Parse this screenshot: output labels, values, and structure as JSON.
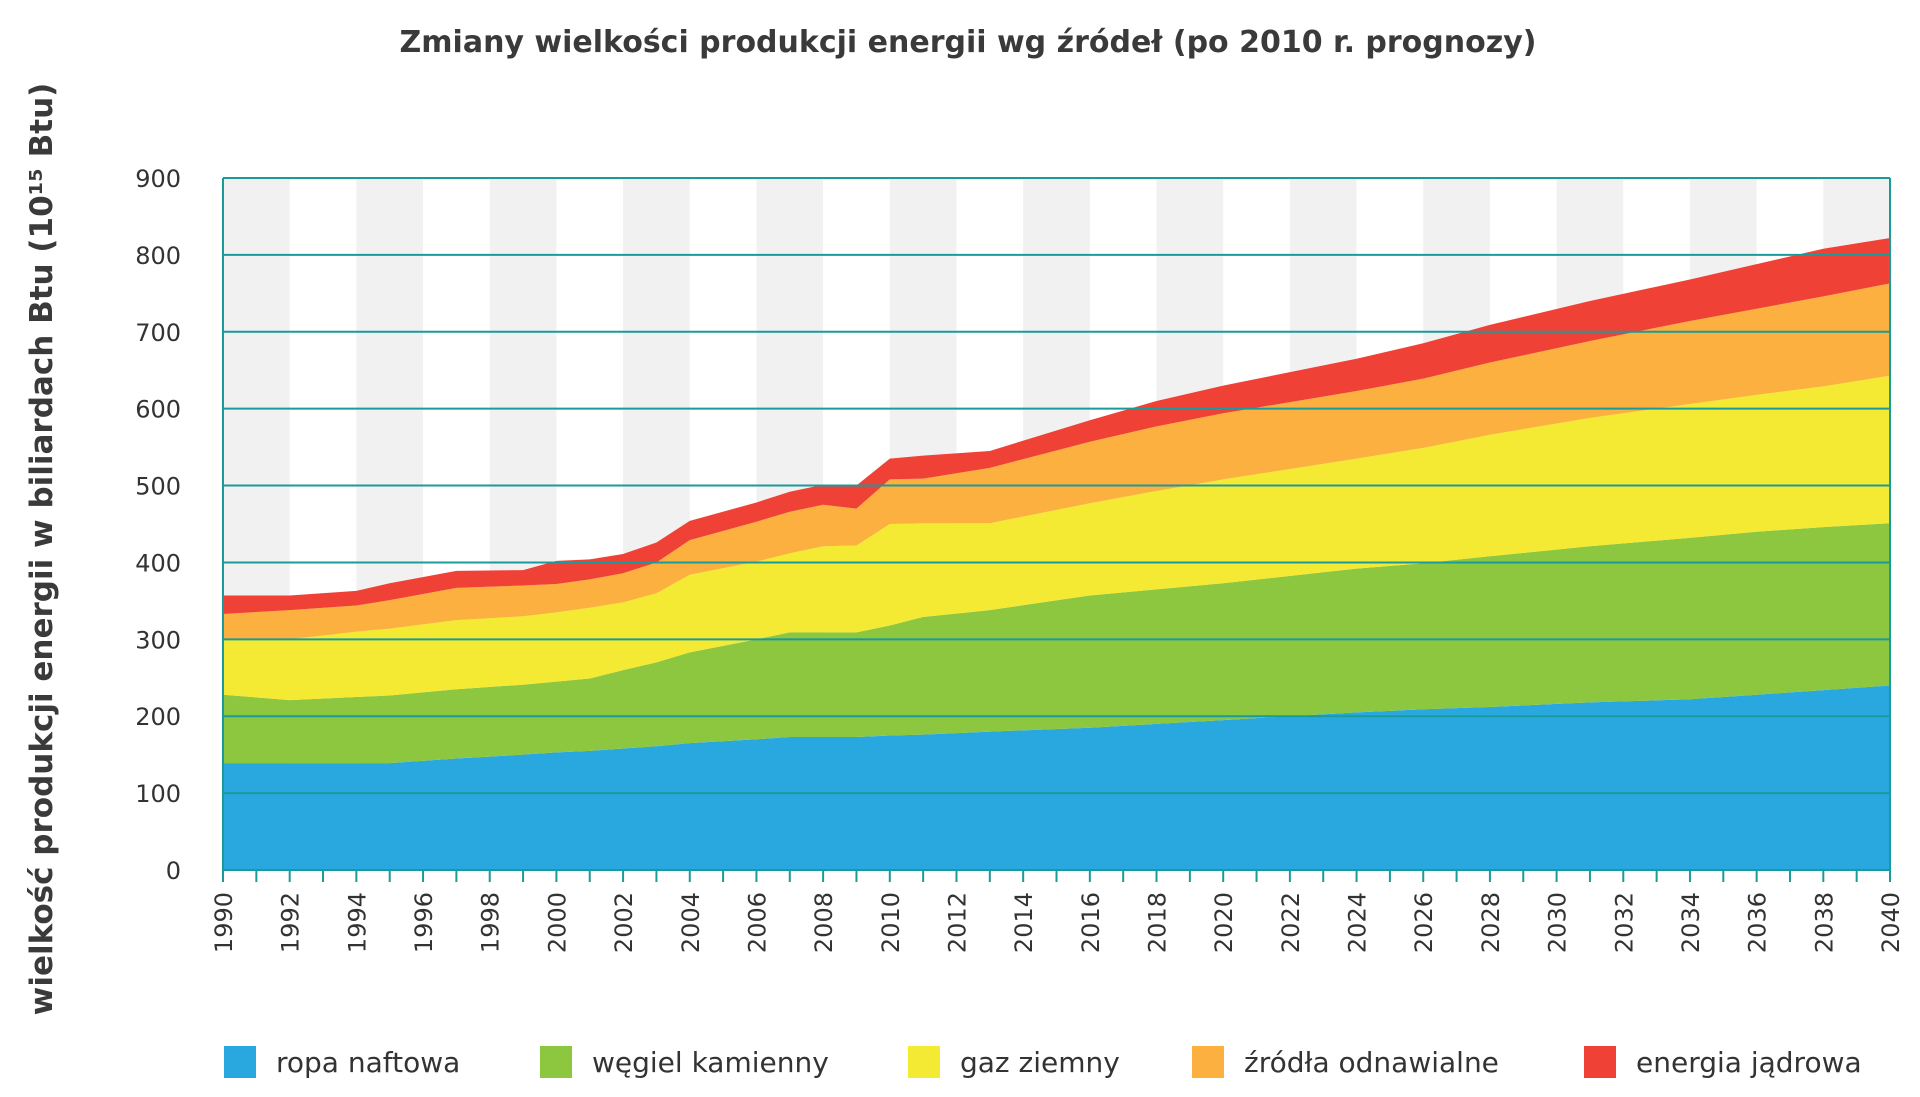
{
  "chart_data": {
    "type": "area",
    "stacked": true,
    "title": "Zmiany wielkości produkcji energii wg źródeł (po 2010 r. prognozy)",
    "xlabel": "",
    "ylabel": "wielkość produkcji energii w biliardach Btu (10¹⁵ Btu)",
    "xlim": [
      1990,
      2040
    ],
    "ylim": [
      0,
      900
    ],
    "yticks": [
      0,
      100,
      200,
      300,
      400,
      500,
      600,
      700,
      800,
      900
    ],
    "yticks_labels": [
      "0",
      "100",
      "200",
      "300",
      "400",
      "500",
      "600",
      "700",
      "800",
      "900"
    ],
    "xticks": [
      1990,
      1992,
      1994,
      1996,
      1998,
      2000,
      2002,
      2004,
      2006,
      2008,
      2010,
      2012,
      2014,
      2016,
      2018,
      2020,
      2022,
      2024,
      2026,
      2028,
      2030,
      2032,
      2034,
      2036,
      2038,
      2040
    ],
    "xticks_labels": [
      "1990",
      "1992",
      "1994",
      "1996",
      "1998",
      "2000",
      "2002",
      "2004",
      "2006",
      "2008",
      "2010",
      "2012",
      "2014",
      "2016",
      "2018",
      "2020",
      "2022",
      "2024",
      "2026",
      "2028",
      "2030",
      "2032",
      "2034",
      "2036",
      "2038",
      "2040"
    ],
    "grid": "horizontal",
    "background_bands": true,
    "legend_position": "bottom",
    "x": [
      1990,
      1992,
      1994,
      1995,
      1997,
      1999,
      2000,
      2001,
      2002,
      2003,
      2004,
      2006,
      2007,
      2008,
      2009,
      2010,
      2011,
      2013,
      2016,
      2018,
      2020,
      2024,
      2026,
      2028,
      2031,
      2034,
      2036,
      2038,
      2040
    ],
    "series": [
      {
        "name": "ropa naftowa",
        "color": "#29a8e0",
        "values": [
          139,
          139,
          139,
          139,
          145,
          150,
          153,
          155,
          158,
          161,
          165,
          170,
          173,
          173,
          173,
          175,
          176,
          180,
          185,
          190,
          195,
          205,
          209,
          212,
          218,
          222,
          228,
          234,
          240
        ]
      },
      {
        "name": "węgiel kamienny",
        "color": "#8dc63f",
        "values": [
          89,
          82,
          86,
          88,
          90,
          91,
          92,
          94,
          102,
          109,
          118,
          130,
          136,
          136,
          136,
          143,
          153,
          158,
          172,
          175,
          178,
          187,
          190,
          196,
          203,
          210,
          212,
          212,
          211
        ]
      },
      {
        "name": "gaz ziemny",
        "color": "#f4ea33",
        "values": [
          72,
          79,
          85,
          87,
          90,
          89,
          90,
          92,
          88,
          90,
          101,
          101,
          103,
          112,
          113,
          132,
          122,
          113,
          120,
          128,
          135,
          143,
          150,
          158,
          167,
          174,
          178,
          183,
          192
        ]
      },
      {
        "name": "źródła odnawialne",
        "color": "#fbb040",
        "values": [
          33,
          38,
          34,
          37,
          42,
          40,
          37,
          37,
          38,
          40,
          45,
          52,
          54,
          54,
          48,
          58,
          58,
          72,
          80,
          84,
          86,
          88,
          90,
          94,
          100,
          108,
          112,
          117,
          120
        ]
      },
      {
        "name": "energia jądrowa",
        "color": "#ef4136",
        "values": [
          24,
          19,
          19,
          22,
          22,
          20,
          30,
          26,
          25,
          26,
          25,
          25,
          26,
          26,
          30,
          27,
          30,
          22,
          28,
          33,
          36,
          42,
          46,
          49,
          52,
          54,
          58,
          62,
          59
        ]
      }
    ]
  }
}
